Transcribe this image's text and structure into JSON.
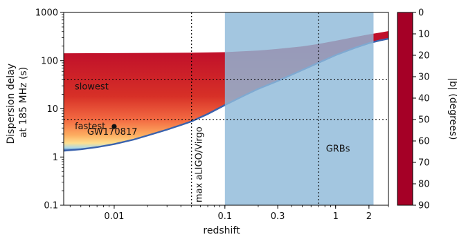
{
  "chart_data": {
    "type": "area",
    "xlabel": "redshift",
    "ylabel_lines": [
      "Dispersion delay",
      "at 185 MHz (s)"
    ],
    "xscale": "log",
    "yscale": "log",
    "xlim": [
      0.0035,
      3.0
    ],
    "ylim": [
      0.1,
      1000
    ],
    "xticks": [
      {
        "value": 0.01,
        "label": "0.01"
      },
      {
        "value": 0.1,
        "label": "0.1"
      },
      {
        "value": 0.3,
        "label": "0.3"
      },
      {
        "value": 1,
        "label": "1"
      },
      {
        "value": 2,
        "label": "2"
      }
    ],
    "yticks": [
      {
        "value": 0.1,
        "label": "0.1"
      },
      {
        "value": 1,
        "label": "1"
      },
      {
        "value": 10,
        "label": "10"
      },
      {
        "value": 100,
        "label": "100"
      },
      {
        "value": 1000,
        "label": "1000"
      }
    ],
    "lower_envelope": {
      "x": [
        0.0035,
        0.005,
        0.007,
        0.01,
        0.015,
        0.02,
        0.03,
        0.04,
        0.05,
        0.07,
        0.1,
        0.15,
        0.2,
        0.3,
        0.5,
        0.7,
        1.0,
        1.5,
        2.0,
        2.5,
        3.0
      ],
      "y": [
        1.35,
        1.45,
        1.6,
        1.85,
        2.3,
        2.8,
        3.7,
        4.6,
        5.5,
        7.8,
        12.0,
        19.0,
        26.0,
        38.0,
        64.0,
        90.0,
        130.0,
        185.0,
        230.0,
        262.0,
        285.0
      ]
    },
    "upper_envelope": {
      "x": [
        0.0035,
        0.01,
        0.05,
        0.1,
        0.2,
        0.3,
        0.5,
        0.7,
        1.0,
        1.5,
        2.0,
        2.5,
        3.0
      ],
      "y": [
        142,
        143,
        146,
        150,
        162,
        175,
        198,
        222,
        258,
        310,
        350,
        380,
        410
      ]
    },
    "hlines": [
      {
        "y": 40,
        "label": "slowest",
        "label_x": 0.0036
      },
      {
        "y": 6,
        "label": "fastest",
        "label_x": 0.0036
      }
    ],
    "vlines": [
      {
        "x": 0.05,
        "label": "max aLIGO/Virgo"
      },
      {
        "x": 0.7,
        "label": ""
      }
    ],
    "shaded_region": {
      "x": [
        0.1,
        2.2
      ],
      "label": "GRBs",
      "label_x": 1.05,
      "label_y": 1.3,
      "color": "#8fbad9"
    },
    "points": [
      {
        "x": 0.01,
        "y": 4.3,
        "label": "GW170817",
        "label_x": 0.0057,
        "label_y": 2.9
      }
    ],
    "colorbar": {
      "label": "|b| (degrees)",
      "range": [
        0,
        90
      ],
      "ticks": [
        "0",
        "10",
        "20",
        "30",
        "40",
        "50",
        "60",
        "70",
        "80",
        "90"
      ],
      "colormap": "RdYlBu",
      "stops": [
        "#a50026",
        "#d73027",
        "#f46d43",
        "#fdae61",
        "#fee090",
        "#e0f3f8",
        "#abd9e9",
        "#74add1",
        "#4575b4",
        "#313695"
      ]
    }
  }
}
